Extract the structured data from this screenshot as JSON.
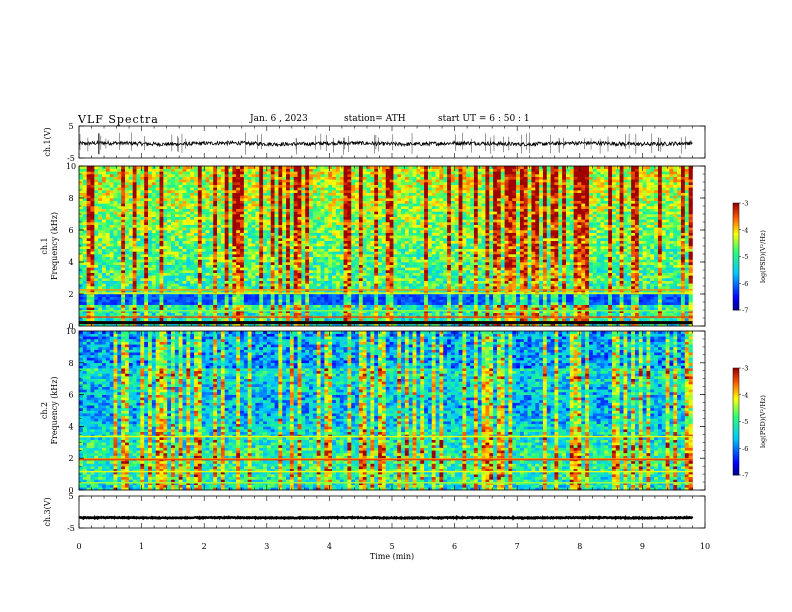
{
  "header": {
    "title": "VLF Spectra",
    "date": "Jan. 6 , 2023",
    "station": "station= ATH",
    "start": "start UT = 6 : 50 : 1"
  },
  "chart_data": [
    {
      "type": "line",
      "panel": "ch1-waveform",
      "ylabel": "ch.1(V)",
      "ylim": [
        -5,
        5
      ],
      "yticks": [
        "5",
        "-5"
      ],
      "xlim": [
        0,
        10
      ],
      "baseline": -0.5,
      "noise_amplitude": 0.6,
      "color": "#000000"
    },
    {
      "type": "heatmap",
      "panel": "ch1-spectrogram",
      "ylabel_channel": "ch.1",
      "ylabel": "Frequency (kHz)",
      "ylim": [
        0,
        10
      ],
      "yticks": [
        "0",
        "2",
        "4",
        "6",
        "8",
        "10"
      ],
      "xlim": [
        0,
        10
      ],
      "colorbar": {
        "label": "log(PSD)(V²/Hz)",
        "range": [
          -7,
          -3
        ],
        "ticks": [
          "-3",
          "-4",
          "-5",
          "-6",
          "-7"
        ]
      }
    },
    {
      "type": "heatmap",
      "panel": "ch2-spectrogram",
      "ylabel_channel": "ch.2",
      "ylabel": "Frequency (kHz)",
      "ylim": [
        0,
        10
      ],
      "yticks": [
        "0",
        "2",
        "4",
        "6",
        "8",
        "10"
      ],
      "xlim": [
        0,
        10
      ],
      "colorbar": {
        "label": "log(PSD)(V²/Hz)",
        "range": [
          -7,
          -3
        ],
        "ticks": [
          "-3",
          "-4",
          "-5",
          "-6",
          "-7"
        ]
      }
    },
    {
      "type": "line",
      "panel": "ch3-waveform",
      "ylabel": "ch.3(V)",
      "ylim": [
        -5,
        5
      ],
      "yticks": [
        "5",
        "-5"
      ],
      "xlim": [
        0,
        10
      ],
      "baseline": -1.8,
      "noise_amplitude": 0.15,
      "color": "#000000"
    }
  ],
  "xaxis": {
    "label": "Time (min)",
    "ticks": [
      "0",
      "1",
      "2",
      "3",
      "4",
      "5",
      "6",
      "7",
      "8",
      "9",
      "10"
    ]
  }
}
